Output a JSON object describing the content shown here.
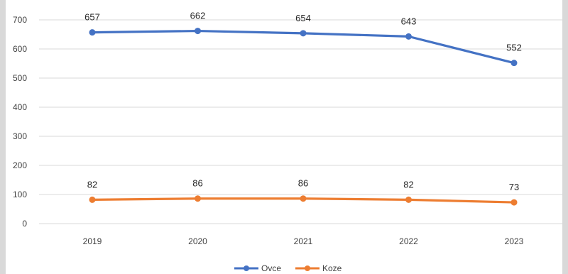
{
  "chart_data": {
    "type": "line",
    "title": "",
    "xlabel": "",
    "ylabel": "",
    "categories": [
      "2019",
      "2020",
      "2021",
      "2022",
      "2023"
    ],
    "ylim": [
      0,
      700
    ],
    "yticks": [
      0,
      100,
      200,
      300,
      400,
      500,
      600,
      700
    ],
    "grid": true,
    "legend_position": "bottom",
    "series": [
      {
        "name": "Ovce",
        "color": "#4472c4",
        "values": [
          657,
          662,
          654,
          643,
          552
        ],
        "labels": [
          "657",
          "662",
          "654",
          "643",
          "552"
        ]
      },
      {
        "name": "Koze",
        "color": "#ed7d31",
        "values": [
          82,
          86,
          86,
          82,
          73
        ],
        "labels": [
          "82",
          "86",
          "86",
          "82",
          "73"
        ]
      }
    ]
  }
}
